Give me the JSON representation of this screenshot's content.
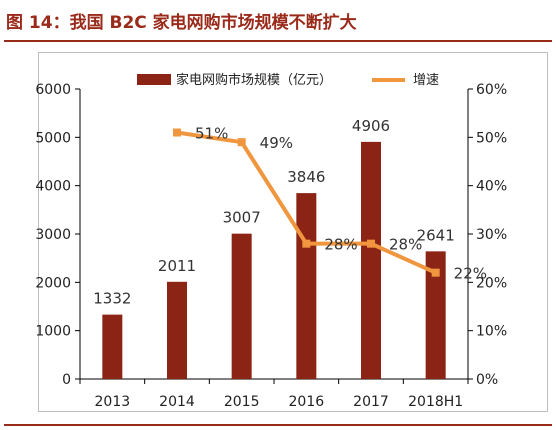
{
  "figure": {
    "title": "图 14：我国 B2C 家电网购市场规模不断扩大"
  },
  "colors": {
    "bar": "#8b2414",
    "line": "#f0963e",
    "title": "#9a2a1a",
    "axis": "#000000"
  },
  "chart_data": {
    "type": "bar",
    "categories": [
      "2013",
      "2014",
      "2015",
      "2016",
      "2017",
      "2018H1"
    ],
    "series": [
      {
        "name": "家电网购市场规模（亿元）",
        "type": "bar",
        "axis": "left",
        "values": [
          1332,
          2011,
          3007,
          3846,
          4906,
          2641
        ],
        "labels": [
          "1332",
          "2011",
          "3007",
          "3846",
          "4906",
          "2641"
        ]
      },
      {
        "name": "增速",
        "type": "line",
        "axis": "right",
        "values": [
          null,
          51,
          49,
          28,
          28,
          22
        ],
        "labels": [
          null,
          "51%",
          "49%",
          "28%",
          "28%",
          "22%"
        ]
      }
    ],
    "y_left": {
      "range": [
        0,
        6000
      ],
      "ticks": [
        "0",
        "1000",
        "2000",
        "3000",
        "4000",
        "5000",
        "6000"
      ]
    },
    "y_right": {
      "range": [
        0,
        60
      ],
      "ticks": [
        "0%",
        "10%",
        "20%",
        "30%",
        "40%",
        "50%",
        "60%"
      ]
    },
    "legend_position": "top",
    "grid": false
  }
}
